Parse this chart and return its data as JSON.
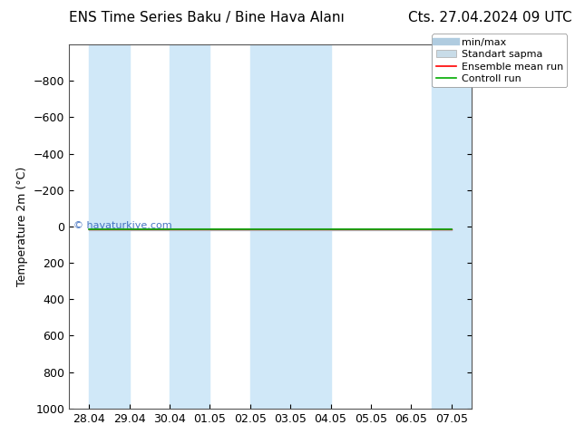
{
  "title_left": "ENS Time Series Baku / Bine Hava Alanı",
  "title_right": "Cts. 27.04.2024 09 UTC",
  "ylabel": "Temperature 2m (°C)",
  "watermark": "© havaturkiye.com",
  "ylim": [
    -1000,
    1000
  ],
  "yticks": [
    -800,
    -600,
    -400,
    -200,
    0,
    200,
    400,
    600,
    800,
    1000
  ],
  "x_dates": [
    "28.04",
    "29.04",
    "30.04",
    "01.05",
    "02.05",
    "03.05",
    "04.05",
    "05.05",
    "06.05",
    "07.05"
  ],
  "x_numeric": [
    0,
    1,
    2,
    3,
    4,
    5,
    6,
    7,
    8,
    9
  ],
  "shaded_bands": [
    0,
    4,
    9
  ],
  "band_color": "#d0e8f8",
  "bg_color": "#ffffff",
  "plot_bg_color": "#ffffff",
  "minmax_color": "#b0cce0",
  "std_color": "#c8dce8",
  "ensemble_color": "#ff0000",
  "control_color": "#00aa00",
  "data_value": 15.0,
  "title_fontsize": 11,
  "legend_fontsize": 8,
  "tick_fontsize": 9,
  "ylabel_fontsize": 9
}
